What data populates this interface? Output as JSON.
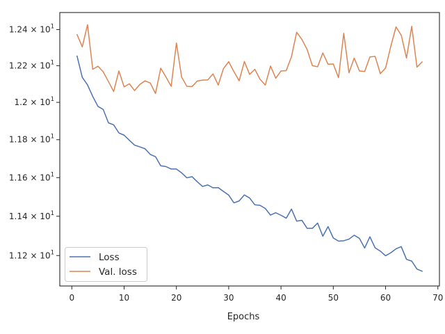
{
  "chart_data": {
    "type": "line",
    "title": "",
    "xlabel": "Epochs",
    "ylabel": "",
    "xlim": [
      -2.3,
      70.3
    ],
    "ylim": [
      11.0475,
      12.4955
    ],
    "xticks": [
      0,
      10,
      20,
      30,
      40,
      50,
      60,
      70
    ],
    "yticks": [
      {
        "value": 11.2,
        "mantissa": "1.12",
        "base": "10",
        "exp": "1"
      },
      {
        "value": 11.4,
        "mantissa": "1.14",
        "base": "10",
        "exp": "1"
      },
      {
        "value": 11.6,
        "mantissa": "1.16",
        "base": "10",
        "exp": "1"
      },
      {
        "value": 11.8,
        "mantissa": "1.18",
        "base": "10",
        "exp": "1"
      },
      {
        "value": 12.0,
        "mantissa": "1.2",
        "base": "10",
        "exp": "1"
      },
      {
        "value": 12.2,
        "mantissa": "1.22",
        "base": "10",
        "exp": "1"
      },
      {
        "value": 12.4,
        "mantissa": "1.24",
        "base": "10",
        "exp": "1"
      }
    ],
    "yscale": "log",
    "grid": false,
    "legend": "lower-left",
    "x": [
      1,
      2,
      3,
      4,
      5,
      6,
      7,
      8,
      9,
      10,
      11,
      12,
      13,
      14,
      15,
      16,
      17,
      18,
      19,
      20,
      21,
      22,
      23,
      24,
      25,
      26,
      27,
      28,
      29,
      30,
      31,
      32,
      33,
      34,
      35,
      36,
      37,
      38,
      39,
      40,
      41,
      42,
      43,
      44,
      45,
      46,
      47,
      48,
      49,
      50,
      51,
      52,
      53,
      54,
      55,
      56,
      57,
      58,
      59,
      60,
      61,
      62,
      63,
      64,
      65,
      66,
      67
    ],
    "series": [
      {
        "name": "Loss",
        "color": "#4c72b0",
        "values": [
          12.253,
          12.136,
          12.095,
          12.032,
          11.978,
          11.962,
          11.89,
          11.879,
          11.836,
          11.824,
          11.797,
          11.771,
          11.762,
          11.752,
          11.722,
          11.71,
          11.662,
          11.658,
          11.645,
          11.645,
          11.625,
          11.599,
          11.605,
          11.578,
          11.554,
          11.562,
          11.547,
          11.548,
          11.528,
          11.509,
          11.469,
          11.479,
          11.51,
          11.494,
          11.459,
          11.456,
          11.44,
          11.406,
          11.418,
          11.405,
          11.39,
          11.437,
          11.375,
          11.379,
          11.338,
          11.338,
          11.365,
          11.298,
          11.347,
          11.289,
          11.273,
          11.275,
          11.283,
          11.303,
          11.287,
          11.238,
          11.295,
          11.239,
          11.222,
          11.199,
          11.214,
          11.234,
          11.245,
          11.181,
          11.172,
          11.132,
          11.121
        ]
      },
      {
        "name": "Val. loss",
        "color": "#dd8452",
        "values": [
          12.372,
          12.304,
          12.427,
          12.18,
          12.197,
          12.166,
          12.113,
          12.059,
          12.171,
          12.084,
          12.101,
          12.064,
          12.097,
          12.117,
          12.105,
          12.048,
          12.186,
          12.138,
          12.087,
          12.325,
          12.137,
          12.087,
          12.086,
          12.116,
          12.121,
          12.122,
          12.155,
          12.094,
          12.184,
          12.222,
          12.167,
          12.117,
          12.223,
          12.152,
          12.18,
          12.125,
          12.094,
          12.198,
          12.131,
          12.171,
          12.173,
          12.249,
          12.385,
          12.345,
          12.289,
          12.2,
          12.194,
          12.27,
          12.208,
          12.209,
          12.134,
          12.379,
          12.161,
          12.242,
          12.171,
          12.168,
          12.248,
          12.251,
          12.156,
          12.187,
          12.307,
          12.415,
          12.368,
          12.242,
          12.418,
          12.192,
          12.221
        ]
      }
    ]
  }
}
